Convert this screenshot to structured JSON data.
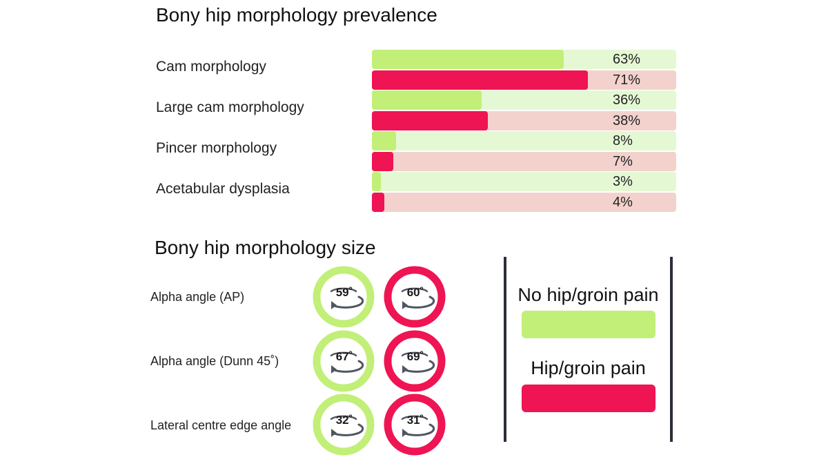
{
  "colors": {
    "no_pain": "#c2ef78",
    "no_pain_track": "#e5f8d4",
    "pain": "#ef1453",
    "pain_track": "#f3d2cd",
    "gauge_arrow": "#4f5660",
    "legend_line": "#2b2f3a"
  },
  "chart_data": [
    {
      "type": "bar",
      "orientation": "horizontal",
      "title": "Bony hip morphology prevalence",
      "categories": [
        "Cam morphology",
        "Large cam morphology",
        "Pincer morphology",
        "Acetabular dysplasia"
      ],
      "series": [
        {
          "name": "No hip/groin pain",
          "values": [
            63,
            36,
            8,
            3
          ]
        },
        {
          "name": "Hip/groin pain",
          "values": [
            71,
            38,
            7,
            4
          ]
        }
      ],
      "value_labels": [
        [
          "63%",
          "71%"
        ],
        [
          "36%",
          "38%"
        ],
        [
          "8%",
          "7%"
        ],
        [
          "3%",
          "4%"
        ]
      ],
      "xlim": [
        0,
        100
      ]
    },
    {
      "type": "table",
      "title": "Bony hip morphology size",
      "categories": [
        "Alpha angle (AP)",
        "Alpha angle (Dunn 45˚)",
        "Lateral centre edge angle"
      ],
      "series": [
        {
          "name": "No hip/groin pain",
          "values": [
            "59˚",
            "67˚",
            "32˚"
          ]
        },
        {
          "name": "Hip/groin pain",
          "values": [
            "60˚",
            "69˚",
            "31˚"
          ]
        }
      ]
    }
  ],
  "legend": {
    "items": [
      {
        "label": "No hip/groin pain",
        "color": "#c2ef78"
      },
      {
        "label": "Hip/groin pain",
        "color": "#ef1453"
      }
    ]
  }
}
